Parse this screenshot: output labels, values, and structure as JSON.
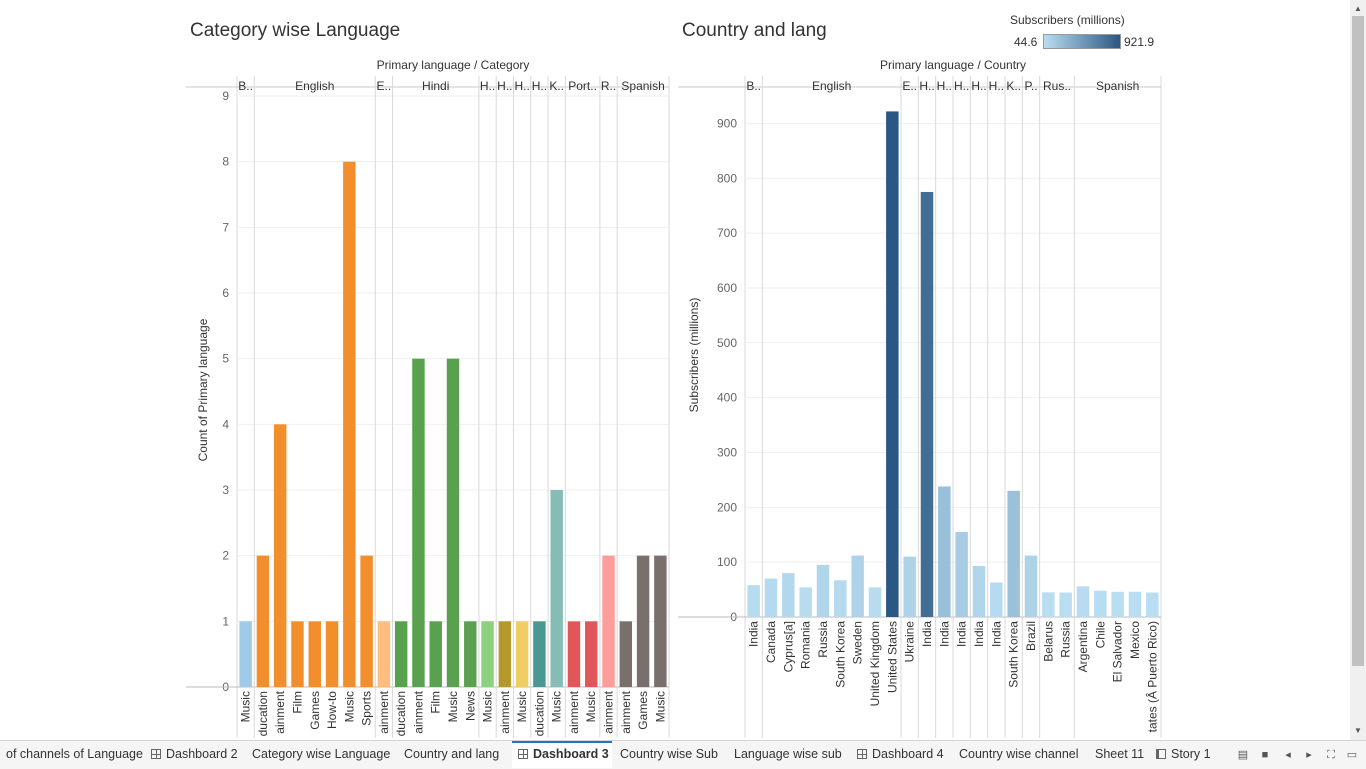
{
  "left": {
    "title": "Category wise Language",
    "header": "Primary language / Category",
    "y_label": "Count of Primary language",
    "groups": [
      {
        "label": "B..",
        "n": 1
      },
      {
        "label": "English",
        "n": 7
      },
      {
        "label": "E..",
        "n": 1
      },
      {
        "label": "Hindi",
        "n": 5
      },
      {
        "label": "H..",
        "n": 1
      },
      {
        "label": "H..",
        "n": 1
      },
      {
        "label": "H..",
        "n": 1
      },
      {
        "label": "H..",
        "n": 1
      },
      {
        "label": "K..",
        "n": 1
      },
      {
        "label": "Port..",
        "n": 2
      },
      {
        "label": "R..",
        "n": 1
      },
      {
        "label": "Spanish",
        "n": 3
      }
    ],
    "y_ticks": [
      "0",
      "1",
      "2",
      "3",
      "4",
      "5",
      "6",
      "7",
      "8",
      "9"
    ]
  },
  "right": {
    "title": "Country and lang",
    "header": "Primary language / Country",
    "y_label": "Subscribers (millions)",
    "groups": [
      {
        "label": "B..",
        "n": 1
      },
      {
        "label": "English",
        "n": 8
      },
      {
        "label": "E..",
        "n": 1
      },
      {
        "label": "H..",
        "n": 1
      },
      {
        "label": "H..",
        "n": 1
      },
      {
        "label": "H..",
        "n": 1
      },
      {
        "label": "H..",
        "n": 1
      },
      {
        "label": "H..",
        "n": 1
      },
      {
        "label": "K..",
        "n": 1
      },
      {
        "label": "P..",
        "n": 1
      },
      {
        "label": "Rus..",
        "n": 2
      },
      {
        "label": "Spanish",
        "n": 5
      }
    ],
    "y_ticks": [
      "0",
      "100",
      "200",
      "300",
      "400",
      "500",
      "600",
      "700",
      "800",
      "900"
    ],
    "legend": {
      "title": "Subscribers (millions)",
      "min": "44.6",
      "max": "921.9"
    }
  },
  "chart_data": [
    {
      "type": "bar",
      "title": "Category wise Language",
      "ylabel": "Count of Primary language",
      "ylim": [
        0,
        9
      ],
      "categories": [
        "Music",
        "Education",
        "Entertainment",
        "Film",
        "Games",
        "How-to",
        "Music",
        "Sports",
        "Entertainment",
        "Education",
        "Entertainment",
        "Film",
        "Music",
        "News",
        "Music",
        "Entertainment",
        "Music",
        "Education",
        "Music",
        "Entertainment",
        "Music",
        "Entertainment",
        "Entertainment",
        "Games",
        "Music"
      ],
      "category_labels": [
        "Music",
        "ducation",
        "ainment",
        "Film",
        "Games",
        "How-to",
        "Music",
        "Sports",
        "ainment",
        "ducation",
        "ainment",
        "Film",
        "Music",
        "News",
        "Music",
        "ainment",
        "Music",
        "ducation",
        "Music",
        "ainment",
        "Music",
        "ainment",
        "ainment",
        "Games",
        "Music"
      ],
      "values": [
        1,
        2,
        4,
        1,
        1,
        1,
        8,
        2,
        1,
        1,
        5,
        1,
        5,
        1,
        1,
        1,
        1,
        1,
        3,
        1,
        1,
        2,
        1,
        2,
        2
      ],
      "colors": [
        "#a0cbe8",
        "#f28e2b",
        "#f28e2b",
        "#f28e2b",
        "#f28e2b",
        "#f28e2b",
        "#f28e2b",
        "#f28e2b",
        "#ffbe7d",
        "#59a14f",
        "#59a14f",
        "#59a14f",
        "#59a14f",
        "#59a14f",
        "#8cd17d",
        "#b6992d",
        "#f1ce63",
        "#499894",
        "#86bcb6",
        "#e15759",
        "#e15759",
        "#ff9d9a",
        "#79706e",
        "#79706e",
        "#79706e"
      ]
    },
    {
      "type": "bar",
      "title": "Country and lang",
      "ylabel": "Subscribers (millions)",
      "ylim": [
        0,
        950
      ],
      "categories": [
        "India",
        "Canada",
        "Cyprus[a]",
        "Romania",
        "Russia",
        "South Korea",
        "Sweden",
        "United Kingdom",
        "United States",
        "Ukraine",
        "India",
        "India",
        "India",
        "India",
        "India",
        "South Korea",
        "Brazil",
        "Belarus",
        "Russia",
        "Argentina",
        "Chile",
        "El Salvador",
        "Mexico",
        "United States (Puerto Rico)"
      ],
      "category_labels": [
        "India",
        "Canada",
        "Cyprus[a]",
        "Romania",
        "Russia",
        "South Korea",
        "Sweden",
        "United Kingdom",
        "United States",
        "Ukraine",
        "India",
        "India",
        "India",
        "India",
        "India",
        "South Korea",
        "Brazil",
        "Belarus",
        "Russia",
        "Argentina",
        "Chile",
        "El Salvador",
        "Mexico",
        "tates (Â Puerto Rico)"
      ],
      "values": [
        58,
        70,
        80,
        54,
        95,
        67,
        112,
        54,
        921.9,
        110,
        775,
        238,
        155,
        93,
        63,
        230,
        112,
        45,
        44.6,
        56,
        48,
        46,
        46,
        44.6
      ],
      "color_scale": {
        "min": 44.6,
        "max": 921.9,
        "low": "#b9ddf1",
        "high": "#2a5783"
      }
    }
  ],
  "tabs": [
    {
      "label": "of channels of Language",
      "icon": "none",
      "active": false
    },
    {
      "label": "Dashboard 2",
      "icon": "dashboard",
      "active": false
    },
    {
      "label": "Category wise Language",
      "icon": "none",
      "active": false
    },
    {
      "label": "Country and lang",
      "icon": "none",
      "active": false
    },
    {
      "label": "Dashboard 3",
      "icon": "dashboard",
      "active": true
    },
    {
      "label": "Country wise Sub",
      "icon": "none",
      "active": false
    },
    {
      "label": "Language wise sub",
      "icon": "none",
      "active": false
    },
    {
      "label": "Dashboard 4",
      "icon": "dashboard",
      "active": false
    },
    {
      "label": "Country wise channel",
      "icon": "none",
      "active": false
    },
    {
      "label": "Sheet 11",
      "icon": "none",
      "active": false
    },
    {
      "label": "Story 1",
      "icon": "story",
      "active": false
    }
  ]
}
